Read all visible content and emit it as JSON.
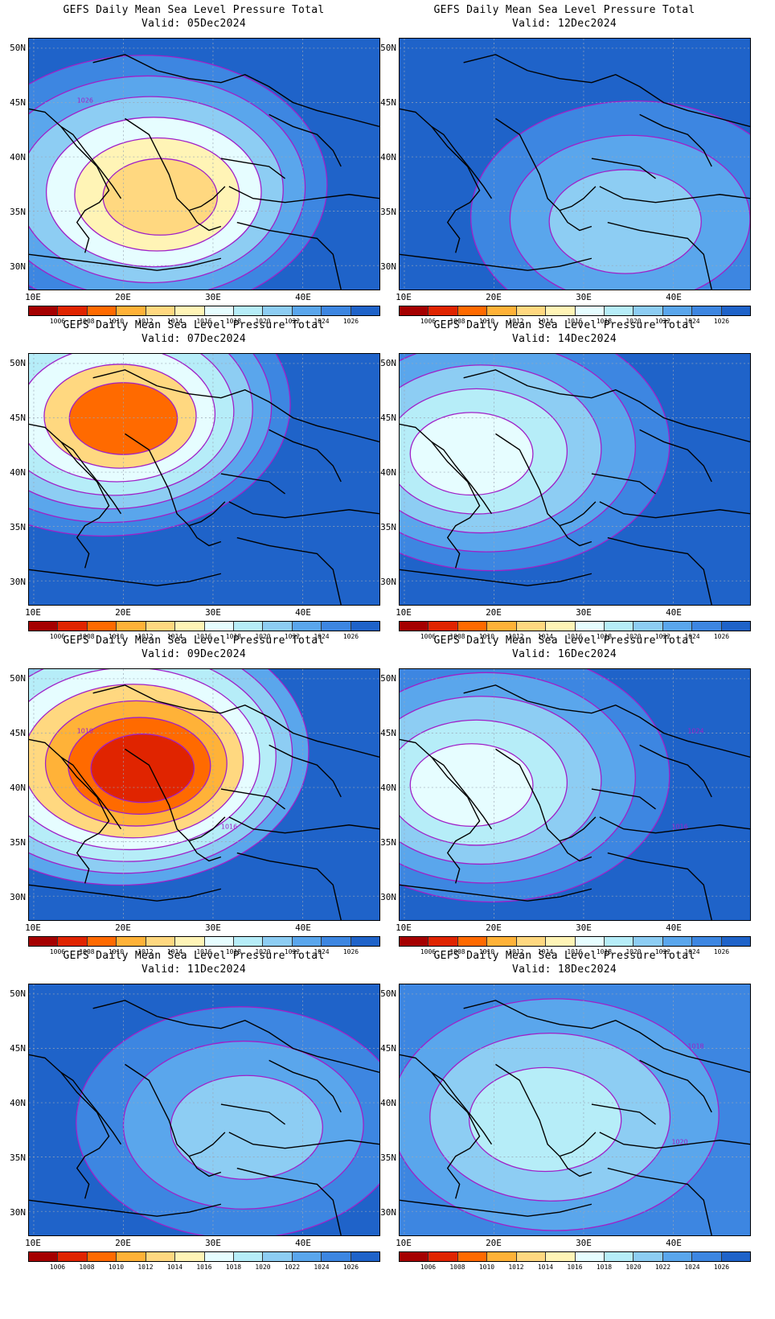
{
  "figure": {
    "title": "GEFS Daily Mean Sea Level Pressure Total",
    "y_ticks": [
      "50N",
      "45N",
      "40N",
      "35N",
      "30N"
    ],
    "x_ticks": [
      "10E",
      "20E",
      "30E",
      "40E"
    ],
    "colorbar": {
      "levels": [
        "1006",
        "1008",
        "1010",
        "1012",
        "1014",
        "1016",
        "1018",
        "1020",
        "1022",
        "1024",
        "1026"
      ],
      "colors": [
        "#a50000",
        "#e02400",
        "#ff6a00",
        "#ffb238",
        "#ffd880",
        "#fff4b6",
        "#e6fdff",
        "#b6edf8",
        "#8dcdf3",
        "#5aa6ec",
        "#3d86e1",
        "#1f63c9"
      ]
    }
  },
  "panels": [
    {
      "valid": "Valid: 05Dec2024",
      "fields": [
        1026,
        1024,
        1022,
        1020,
        1016,
        1014,
        1012
      ],
      "labels": [
        "1026"
      ]
    },
    {
      "valid": "Valid: 12Dec2024",
      "fields": [
        1026,
        1024,
        1022,
        1020
      ],
      "labels": []
    },
    {
      "valid": "Valid: 07Dec2024",
      "fields": [
        1026,
        1024,
        1022,
        1020,
        1018,
        1016,
        1012,
        1008
      ],
      "labels": []
    },
    {
      "valid": "Valid: 14Dec2024",
      "fields": [
        1026,
        1024,
        1022,
        1020,
        1018,
        1016
      ],
      "labels": []
    },
    {
      "valid": "Valid: 09Dec2024",
      "fields": [
        1026,
        1022,
        1020,
        1018,
        1016,
        1012,
        1010,
        1008,
        1006
      ],
      "labels": [
        "1010",
        "1016"
      ]
    },
    {
      "valid": "Valid: 16Dec2024",
      "fields": [
        1026,
        1024,
        1022,
        1020,
        1018,
        1016
      ],
      "labels": [
        "1024",
        "1016"
      ]
    },
    {
      "valid": "Valid: 11Dec2024",
      "fields": [
        1026,
        1024,
        1022,
        1020
      ],
      "labels": []
    },
    {
      "valid": "Valid: 18Dec2024",
      "fields": [
        1024,
        1022,
        1020,
        1018
      ],
      "labels": [
        "1018",
        "1020"
      ]
    }
  ]
}
